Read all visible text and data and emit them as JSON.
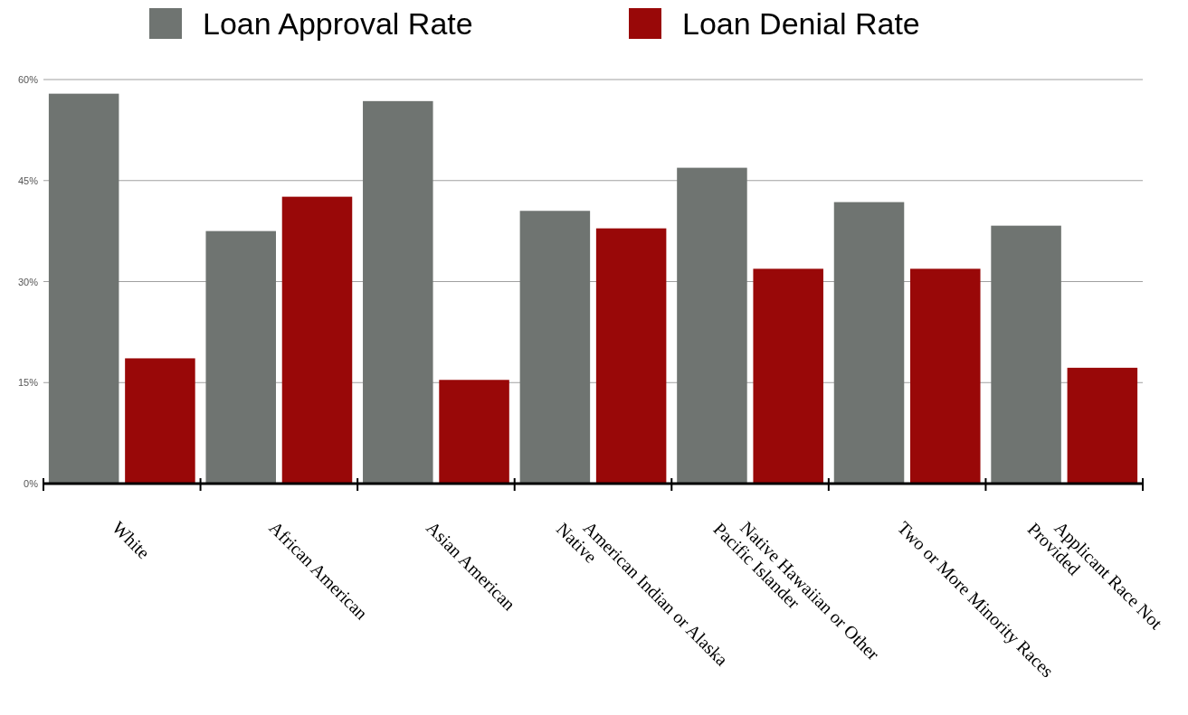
{
  "chart_data": {
    "type": "bar",
    "categories": [
      "White",
      "African American",
      "Asian American",
      "American Indian or Alaska Native",
      "Native Hawaiian or Other Pacific Islander",
      "Two or More Minority Races",
      "Applicant Race Not Provided"
    ],
    "series": [
      {
        "name": "Loan Approval Rate",
        "color": "#6f7471",
        "values": [
          57.9,
          37.5,
          56.8,
          40.5,
          46.9,
          41.8,
          38.3
        ]
      },
      {
        "name": "Loan Denial Rate",
        "color": "#990808",
        "values": [
          18.6,
          42.6,
          15.4,
          37.9,
          31.9,
          31.9,
          17.2
        ]
      }
    ],
    "ylim": [
      0,
      60
    ],
    "yticks": [
      {
        "value": 0,
        "label": "0%"
      },
      {
        "value": 15,
        "label": "15%"
      },
      {
        "value": 30,
        "label": "30%"
      },
      {
        "value": 45,
        "label": "45%"
      },
      {
        "value": 60,
        "label": "60%"
      }
    ],
    "grid": "y",
    "legend": "top"
  }
}
